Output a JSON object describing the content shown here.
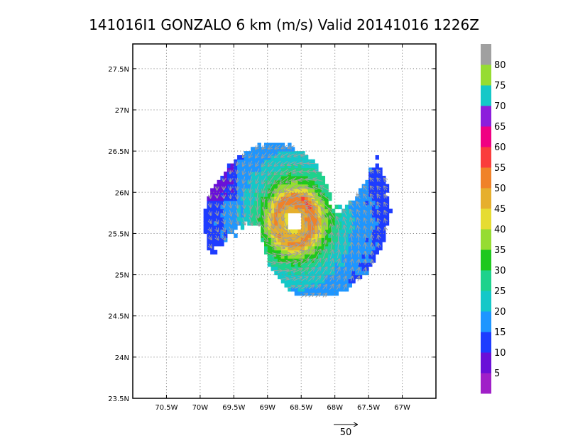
{
  "chart_data": {
    "type": "heatmap",
    "title": "141016I1 GONZALO 6 km (m/s) Valid 20141016 1226Z",
    "xlabel": "",
    "ylabel": "",
    "xlim": [
      -71.0,
      -66.5
    ],
    "ylim": [
      23.5,
      27.8
    ],
    "x_ticks": [
      -70.5,
      -70.0,
      -69.5,
      -69.0,
      -68.5,
      -68.0,
      -67.5,
      -67.0
    ],
    "x_tick_labels": [
      "70.5W",
      "70W",
      "69.5W",
      "69W",
      "68.5W",
      "68W",
      "67.5W",
      "67W"
    ],
    "y_ticks": [
      23.5,
      24.0,
      24.5,
      25.0,
      25.5,
      26.0,
      26.5,
      27.0,
      27.5
    ],
    "y_tick_labels": [
      "23.5N",
      "24N",
      "24.5N",
      "25N",
      "25.5N",
      "26N",
      "26.5N",
      "27N",
      "27.5N"
    ],
    "grid": true,
    "grid_style": "dotted",
    "center": {
      "lon": -68.6,
      "lat": 25.65
    },
    "eye_radius_deg": 0.12,
    "peak_wind_ms": 52,
    "colorbar": {
      "levels": [
        0,
        5,
        10,
        15,
        20,
        25,
        30,
        35,
        40,
        45,
        50,
        55,
        60,
        65,
        70,
        75,
        80,
        85
      ],
      "labels": [
        "5",
        "10",
        "15",
        "20",
        "25",
        "30",
        "35",
        "40",
        "45",
        "50",
        "55",
        "60",
        "65",
        "70",
        "75",
        "80"
      ],
      "colors": [
        "#a020c8",
        "#6a10d8",
        "#1e3cff",
        "#1e96ff",
        "#14c8c8",
        "#1ed28c",
        "#1ec81e",
        "#96dc32",
        "#e6dc32",
        "#e6af2d",
        "#f08228",
        "#fa3c3c",
        "#f00082",
        "#8c1edc",
        "#14c8c8",
        "#96dc32",
        "#a0a0a0"
      ]
    },
    "vector_reference": {
      "label": "50",
      "speed_ms": 50
    },
    "vectors": {
      "color": "#a0a0a0",
      "direction": "cyclonic"
    }
  }
}
